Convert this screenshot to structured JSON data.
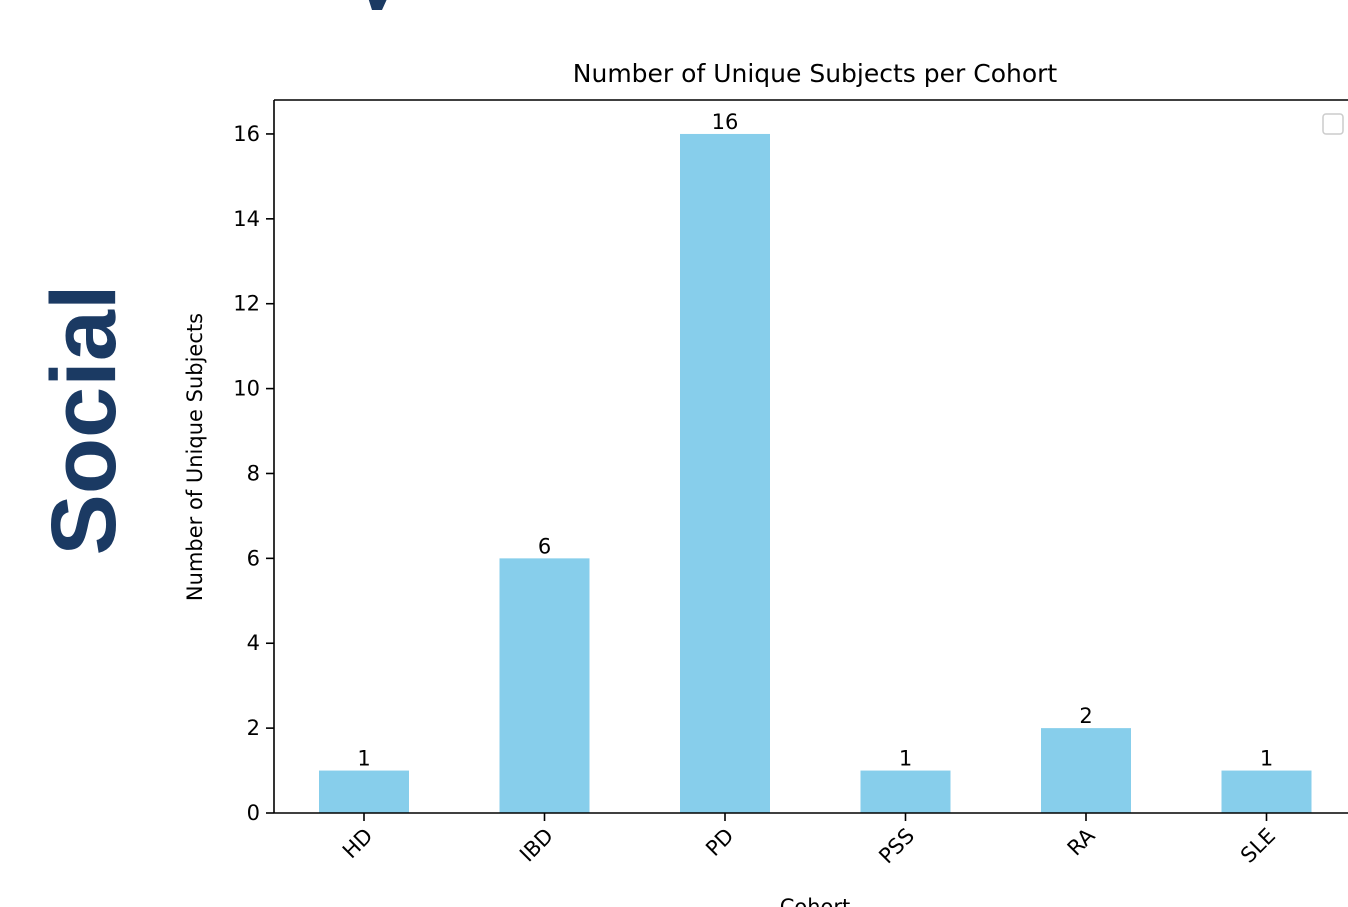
{
  "side_text": "Social",
  "colors": {
    "bar": "#87ceeb",
    "side_text": "#1b3a63",
    "axis": "#000000"
  },
  "chart_data": {
    "type": "bar",
    "title": "Number of Unique Subjects per Cohort",
    "xlabel": "Cohort",
    "ylabel": "Number of Unique Subjects",
    "categories": [
      "HD",
      "IBD",
      "PD",
      "PSS",
      "RA",
      "SLE"
    ],
    "values": [
      1,
      6,
      16,
      1,
      2,
      1
    ],
    "ylim": [
      0,
      16.8
    ],
    "yticks": [
      0,
      2,
      4,
      6,
      8,
      10,
      12,
      14,
      16
    ],
    "grid": false,
    "legend": "top-right"
  }
}
